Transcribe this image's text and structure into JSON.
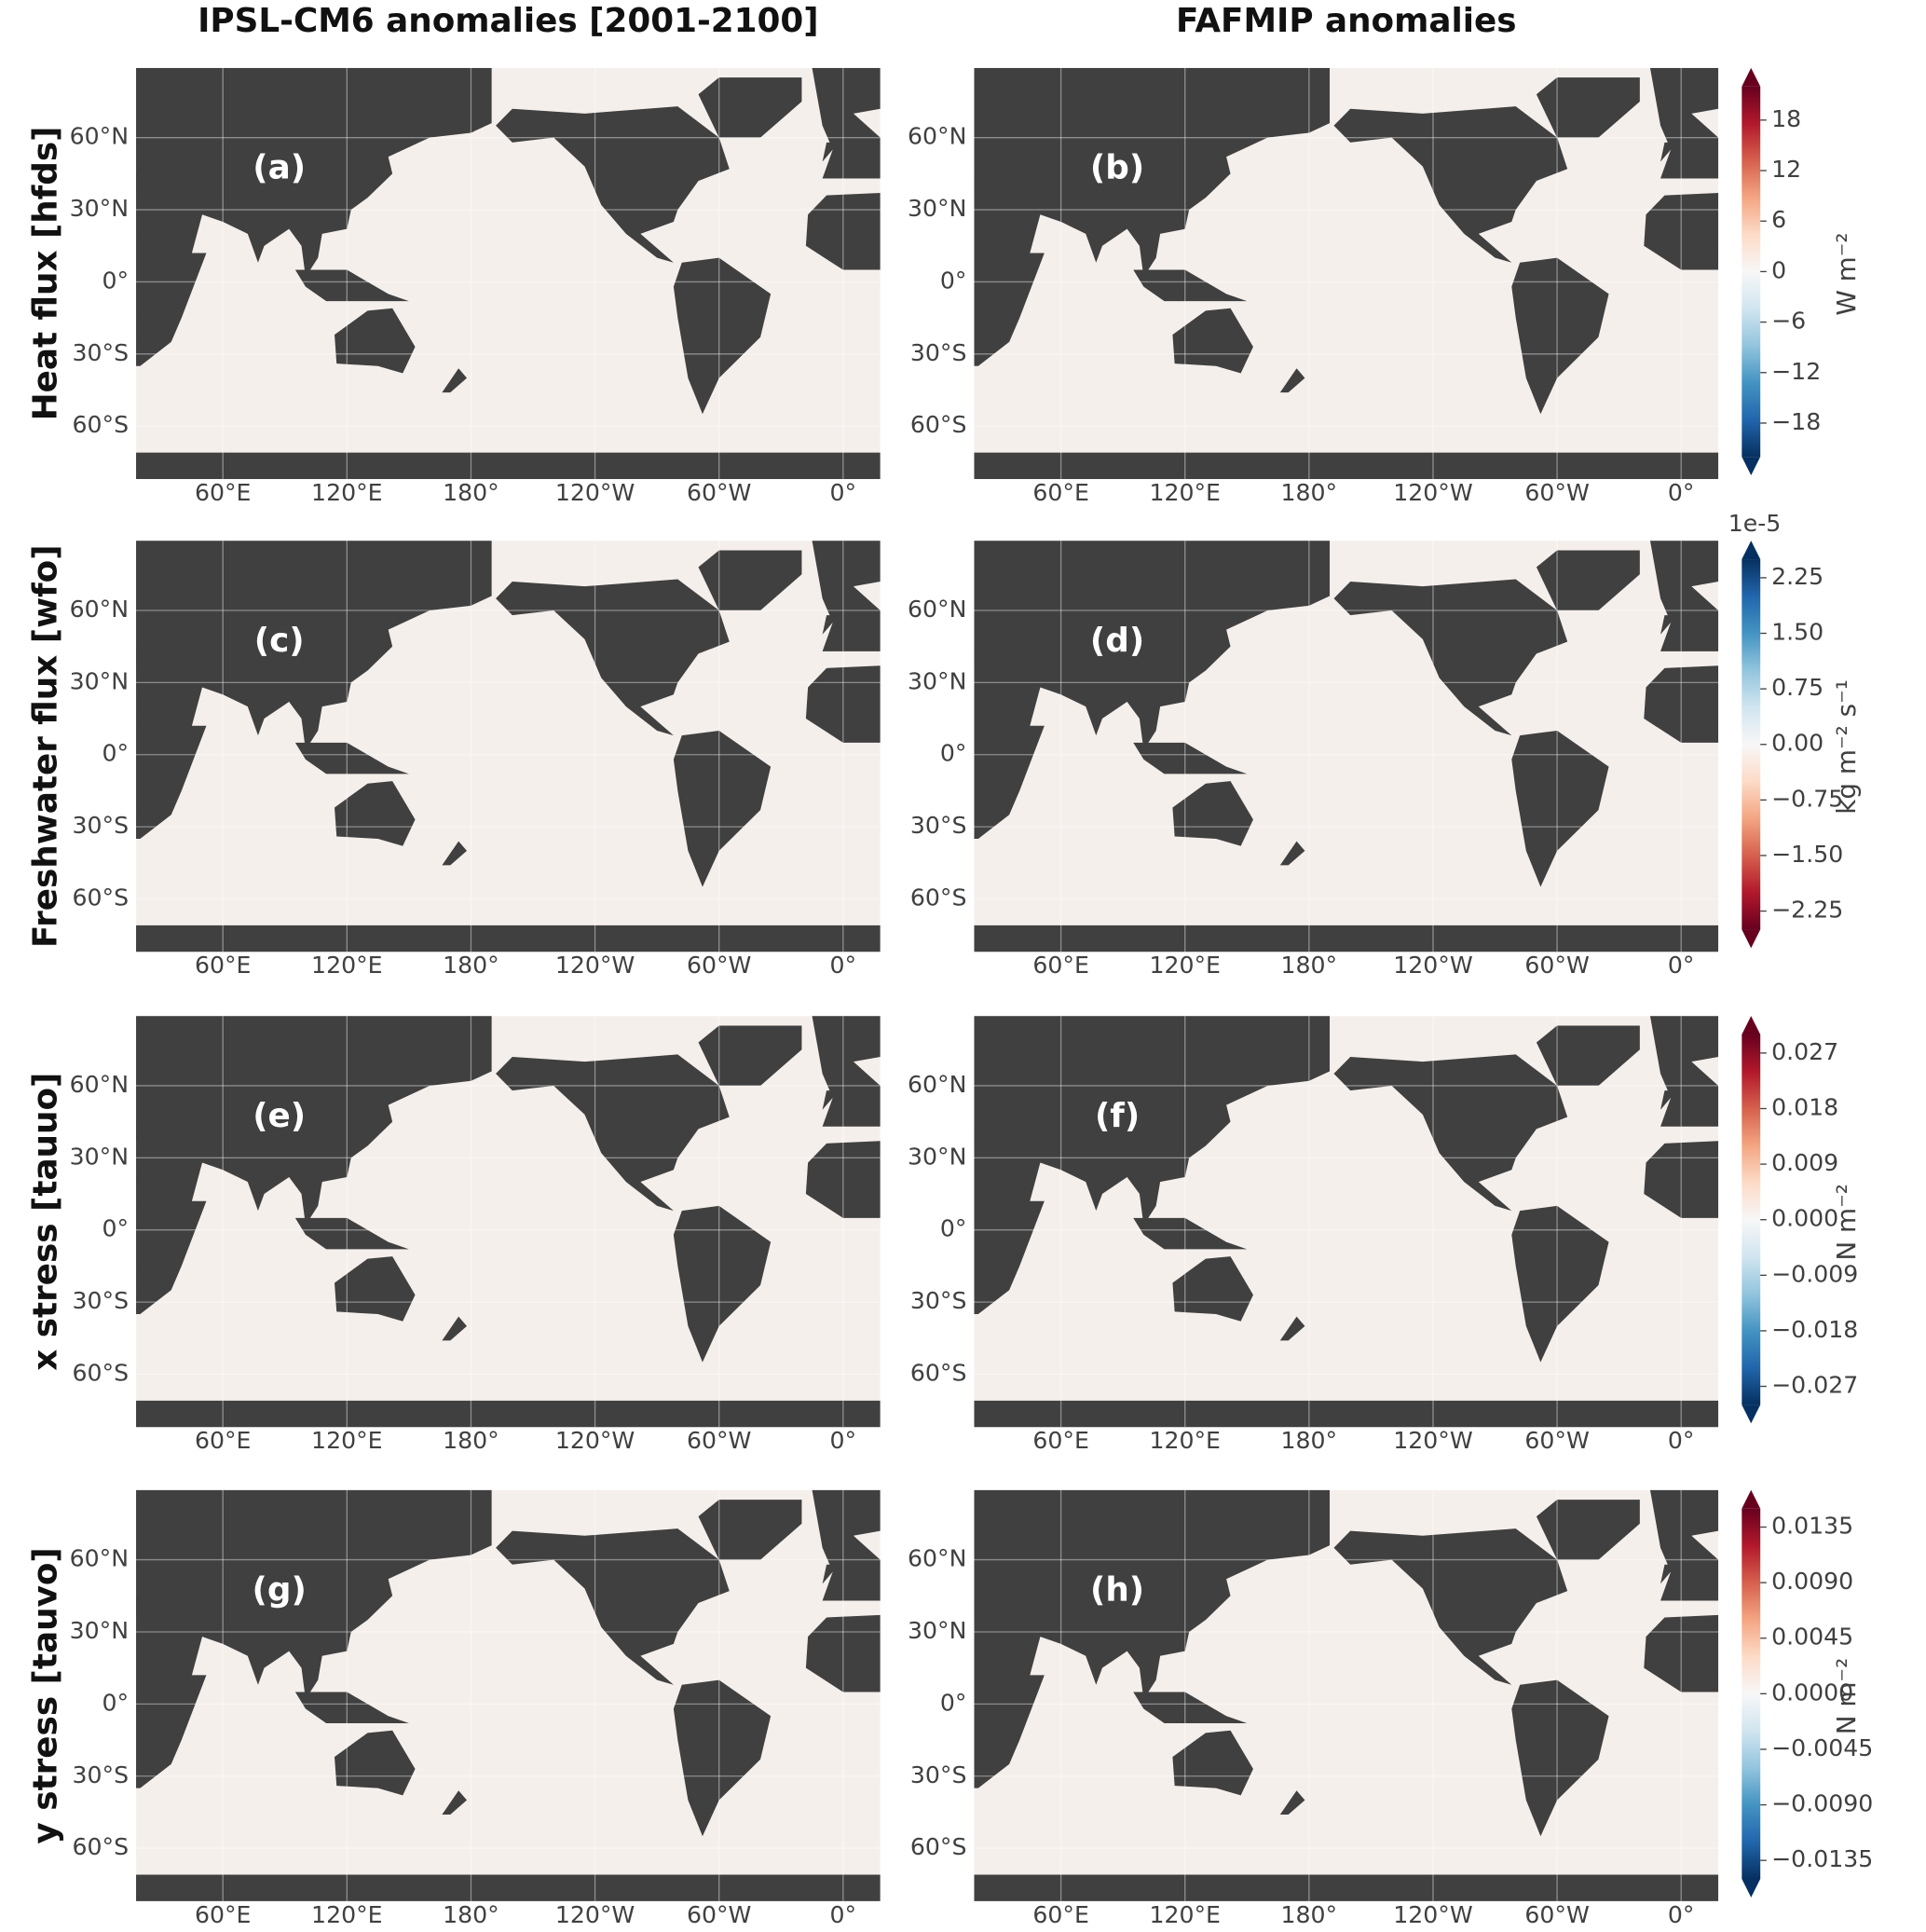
{
  "column_titles": [
    "IPSL-CM6 anomalies [2001-2100]",
    "FAFMIP anomalies"
  ],
  "map": {
    "xlim": [
      18,
      378
    ],
    "ylim": [
      -82,
      89
    ],
    "lat_ticks": [
      {
        "value": 60,
        "label": "60°N"
      },
      {
        "value": 30,
        "label": "30°N"
      },
      {
        "value": 0,
        "label": "0°"
      },
      {
        "value": -30,
        "label": "30°S"
      },
      {
        "value": -60,
        "label": "60°S"
      }
    ],
    "lon_ticks": [
      {
        "value": 60,
        "label": "60°E"
      },
      {
        "value": 120,
        "label": "120°E"
      },
      {
        "value": 180,
        "label": "180°"
      },
      {
        "value": 240,
        "label": "120°W"
      },
      {
        "value": 300,
        "label": "60°W"
      },
      {
        "value": 360,
        "label": "0°"
      }
    ],
    "grid": true,
    "land_color": "#404040",
    "ocean_color": "#f5efec"
  },
  "rows": [
    {
      "label": "Heat flux [hfds]",
      "panels": [
        "(a)",
        "(b)"
      ],
      "colorbar": {
        "label": "W m⁻²",
        "lim": [
          -22,
          22
        ],
        "ticks": [
          18,
          12,
          6,
          0,
          {
            "value": -6,
            "label": "−6"
          },
          {
            "value": -12,
            "label": "−12"
          },
          {
            "value": -18,
            "label": "−18"
          }
        ],
        "colors": [
          "#053061",
          "#2166ac",
          "#4393c3",
          "#92c5de",
          "#d1e5f0",
          "#f7f7f7",
          "#fddbc7",
          "#f4a582",
          "#d6604d",
          "#b2182b",
          "#67001f"
        ]
      }
    },
    {
      "label": "Freshwater flux [wfo]",
      "panels": [
        "(c)",
        "(d)"
      ],
      "colorbar": {
        "label": "kg m⁻² s⁻¹",
        "offset_label": "1e-5",
        "lim": [
          -2.5,
          2.5
        ],
        "ticks": [
          2.25,
          {
            "value": 1.5,
            "label": "1.50"
          },
          0.75,
          {
            "value": 0,
            "label": "0.00"
          },
          {
            "value": -0.75,
            "label": "−0.75"
          },
          {
            "value": -1.5,
            "label": "−1.50"
          },
          {
            "value": -2.25,
            "label": "−2.25"
          }
        ],
        "colors": [
          "#67001f",
          "#b2182b",
          "#d6604d",
          "#f4a582",
          "#fddbc7",
          "#f7f7f7",
          "#d1e5f0",
          "#92c5de",
          "#4393c3",
          "#2166ac",
          "#053061"
        ]
      }
    },
    {
      "label": "x stress [tauuo]",
      "panels": [
        "(e)",
        "(f)"
      ],
      "colorbar": {
        "label": "N m⁻²",
        "lim": [
          -0.03,
          0.03
        ],
        "ticks": [
          0.027,
          0.018,
          0.009,
          {
            "value": 0,
            "label": "0.000"
          },
          {
            "value": -0.009,
            "label": "−0.009"
          },
          {
            "value": -0.018,
            "label": "−0.018"
          },
          {
            "value": -0.027,
            "label": "−0.027"
          }
        ],
        "colors": [
          "#053061",
          "#2166ac",
          "#4393c3",
          "#92c5de",
          "#d1e5f0",
          "#f7f7f7",
          "#fddbc7",
          "#f4a582",
          "#d6604d",
          "#b2182b",
          "#67001f"
        ]
      }
    },
    {
      "label": "y stress [tauvo]",
      "panels": [
        "(g)",
        "(h)"
      ],
      "colorbar": {
        "label": "N m⁻²",
        "lim": [
          -0.015,
          0.015
        ],
        "ticks": [
          0.0135,
          {
            "value": 0.009,
            "label": "0.0090"
          },
          0.0045,
          {
            "value": 0,
            "label": "0.0000"
          },
          {
            "value": -0.0045,
            "label": "−0.0045"
          },
          {
            "value": -0.009,
            "label": "−0.0090"
          },
          {
            "value": -0.0135,
            "label": "−0.0135"
          }
        ],
        "colors": [
          "#053061",
          "#2166ac",
          "#4393c3",
          "#92c5de",
          "#d1e5f0",
          "#f7f7f7",
          "#fddbc7",
          "#f4a582",
          "#d6604d",
          "#b2182b",
          "#67001f"
        ]
      }
    }
  ]
}
